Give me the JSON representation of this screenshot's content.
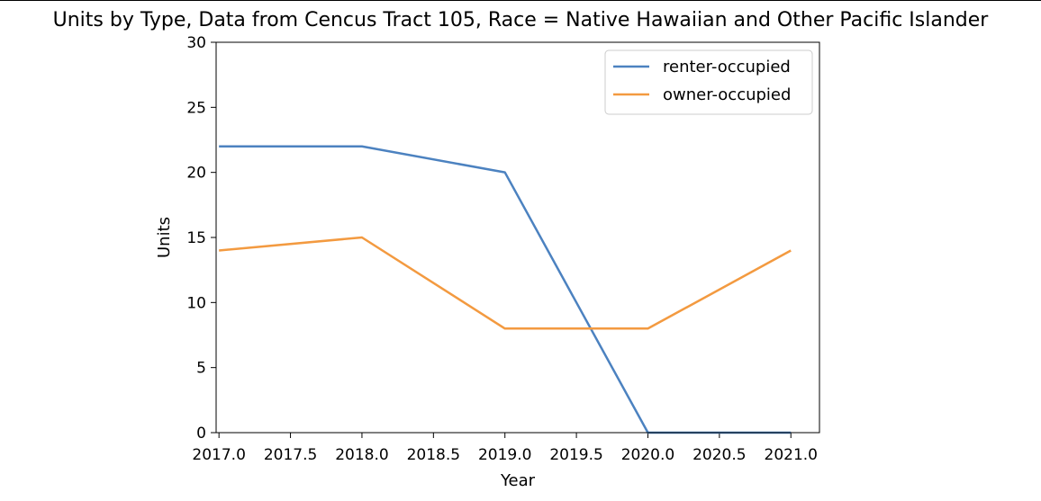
{
  "chart_data": {
    "type": "line",
    "title": "Units by Type, Data from Cencus Tract 105, Race = Native Hawaiian and Other Pacific Islander",
    "xlabel": "Year",
    "ylabel": "Units",
    "x": [
      2017,
      2018,
      2019,
      2020,
      2021
    ],
    "xlim": [
      2016.98,
      2021.2
    ],
    "ylim": [
      0,
      30
    ],
    "xticks": [
      "2017.0",
      "2017.5",
      "2018.0",
      "2018.5",
      "2019.0",
      "2019.5",
      "2020.0",
      "2020.5",
      "2021.0"
    ],
    "yticks": [
      "0",
      "5",
      "10",
      "15",
      "20",
      "25",
      "30"
    ],
    "grid": false,
    "legend_position": "top-right",
    "series": [
      {
        "name": "renter-occupied",
        "color": "#4c82c0",
        "values": [
          22,
          22,
          20,
          0,
          0
        ]
      },
      {
        "name": "owner-occupied",
        "color": "#f39a40",
        "values": [
          14,
          15,
          8,
          8,
          14
        ]
      }
    ]
  }
}
